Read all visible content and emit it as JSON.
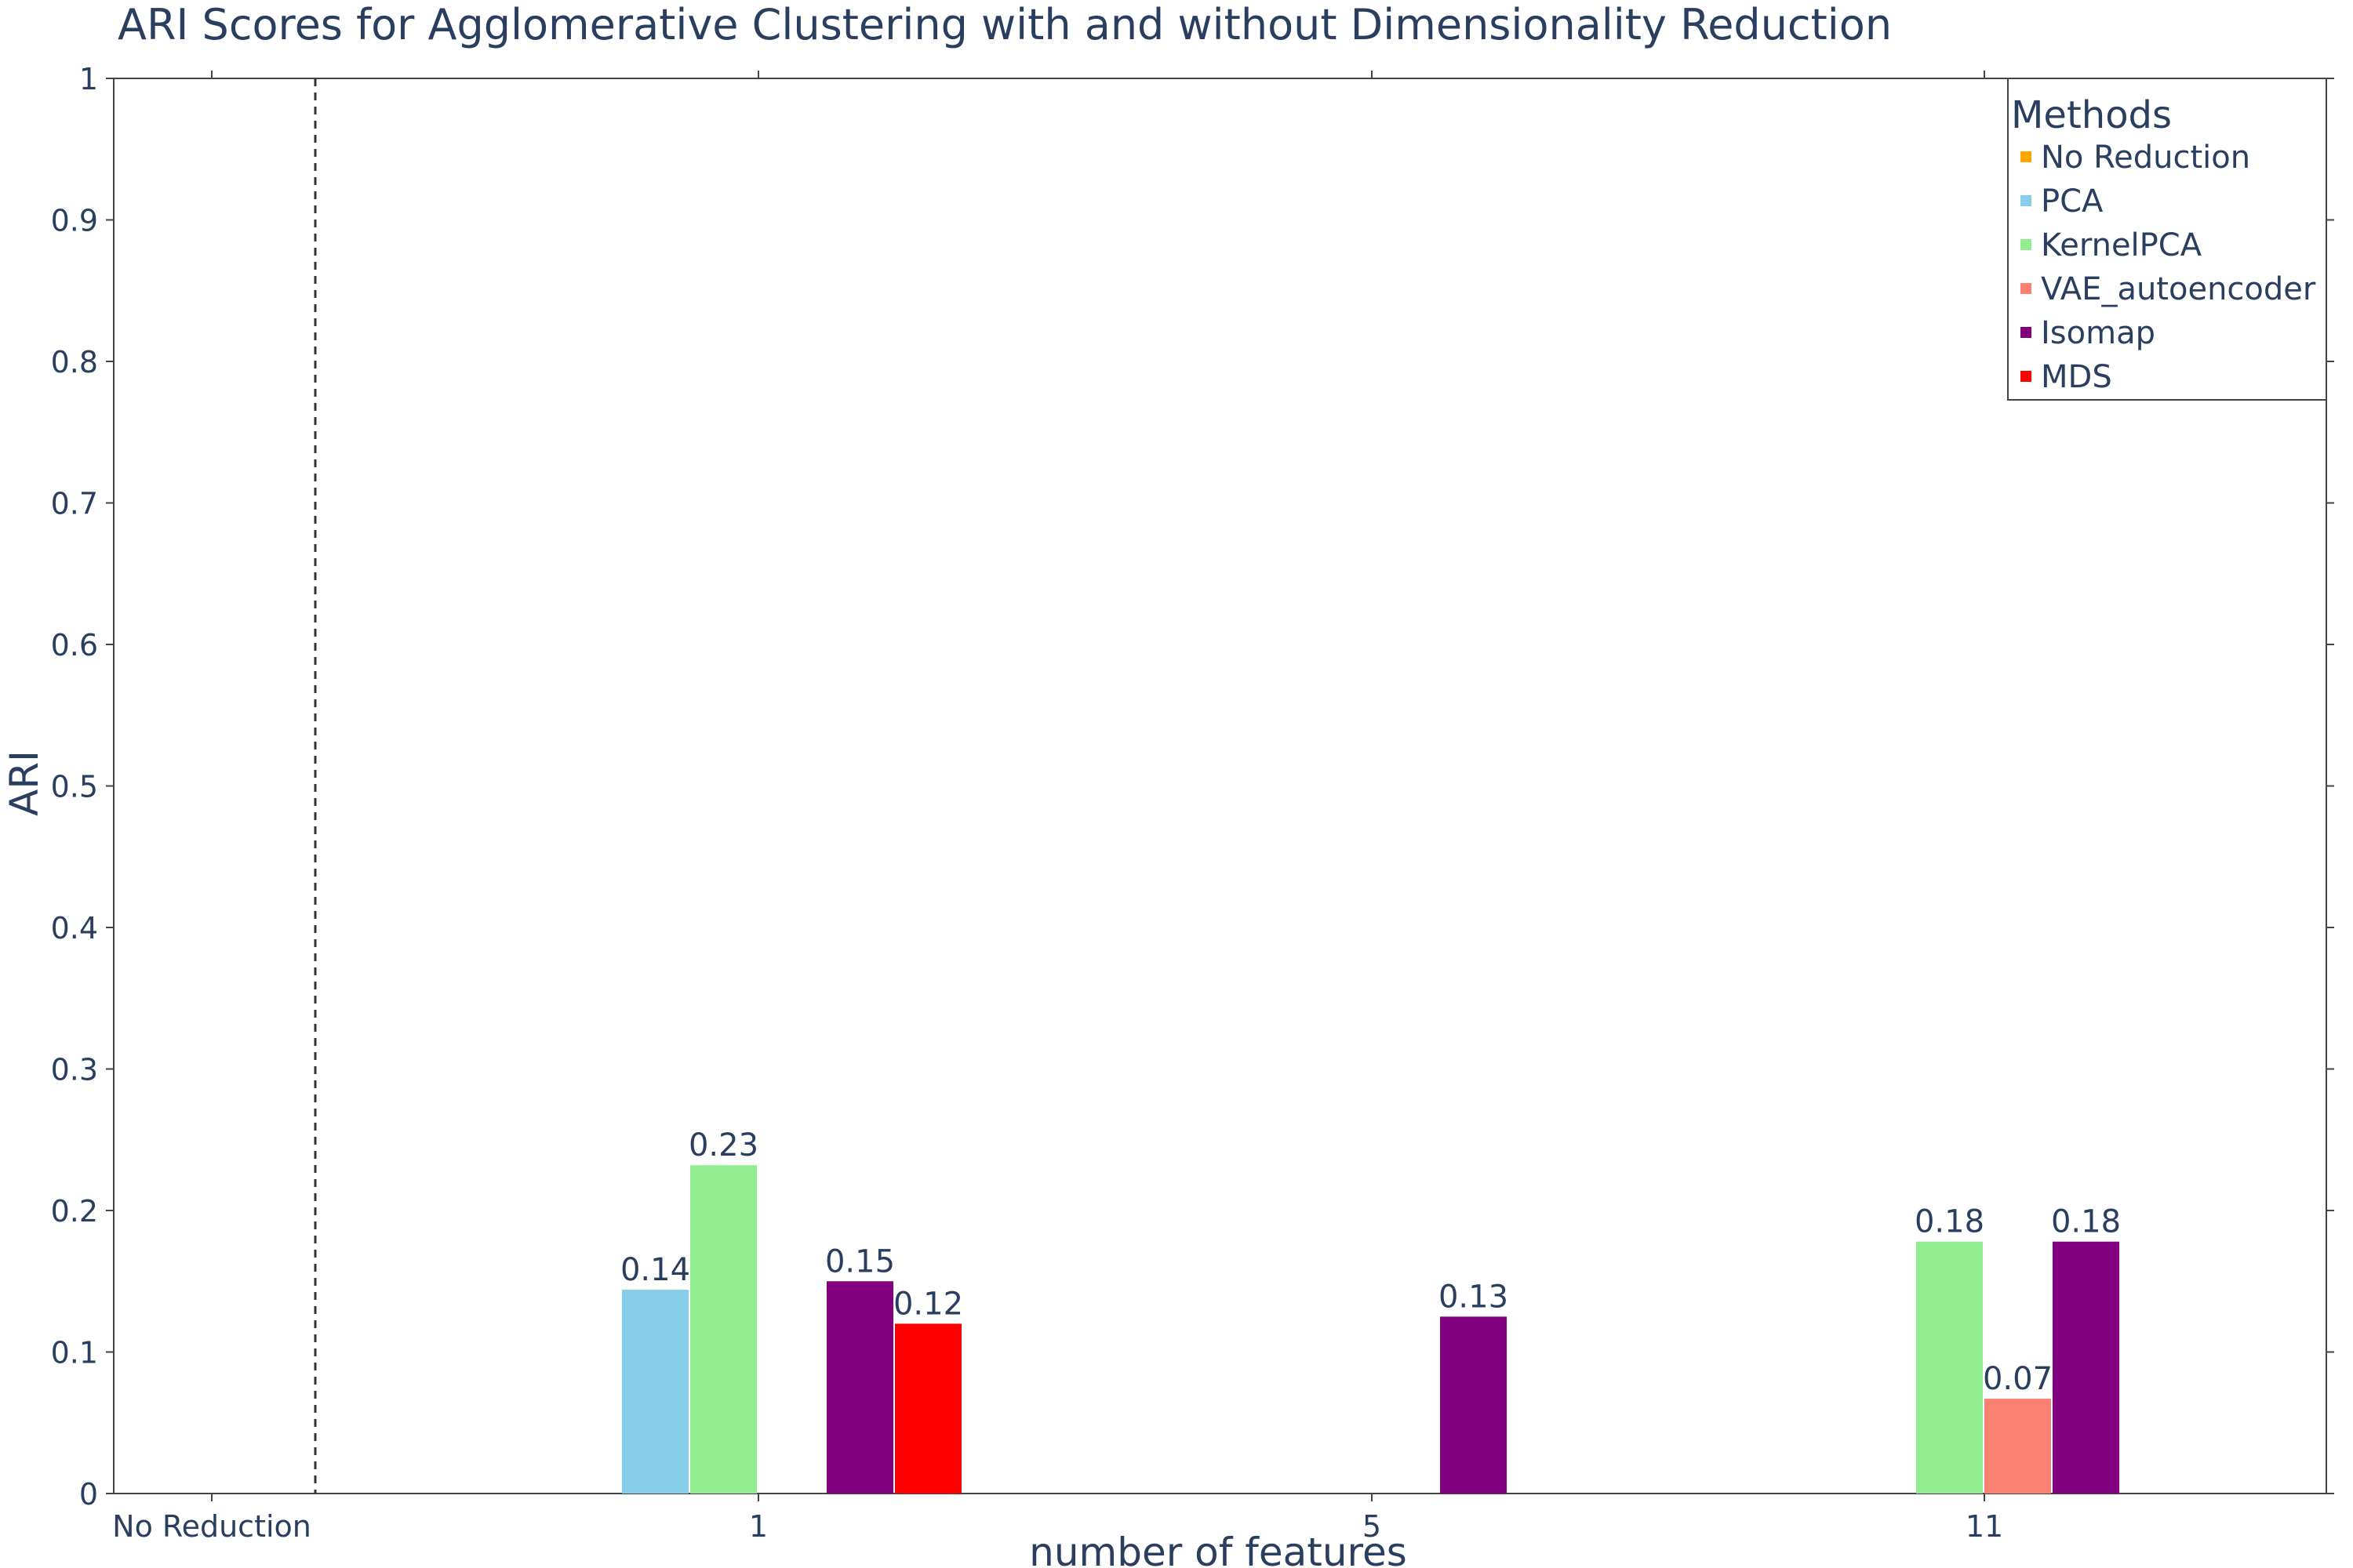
{
  "chart_data": {
    "type": "bar",
    "title": "ARI Scores for Agglomerative Clustering with and without Dimensionality Reduction",
    "xlabel": "number of features",
    "ylabel": "ARI",
    "ylim": [
      0,
      1
    ],
    "yticks": [
      "0",
      "0.1",
      "0.2",
      "0.3",
      "0.4",
      "0.5",
      "0.6",
      "0.7",
      "0.8",
      "0.9",
      "1"
    ],
    "categories": [
      "No Reduction",
      "1",
      "5",
      "11"
    ],
    "legend": {
      "title": "Methods",
      "position": "top-right"
    },
    "grid": false,
    "series": [
      {
        "name": "No Reduction",
        "color": "#FFA500",
        "values": [
          null,
          null,
          null,
          null
        ]
      },
      {
        "name": "PCA",
        "color": "#87CEEB",
        "values": [
          null,
          0.144,
          null,
          null
        ],
        "labels": [
          null,
          "0.14",
          null,
          null
        ]
      },
      {
        "name": "KernelPCA",
        "color": "#90EE90",
        "values": [
          null,
          0.232,
          null,
          0.178
        ],
        "labels": [
          null,
          "0.23",
          null,
          "0.18"
        ]
      },
      {
        "name": "VAE_autoencoder",
        "color": "#FA8072",
        "values": [
          null,
          null,
          null,
          0.067
        ],
        "labels": [
          null,
          null,
          null,
          "0.07"
        ]
      },
      {
        "name": "Isomap",
        "color": "#800080",
        "values": [
          null,
          0.15,
          0.125,
          0.178
        ],
        "labels": [
          null,
          "0.15",
          "0.13",
          "0.18"
        ]
      },
      {
        "name": "MDS",
        "color": "#FF0000",
        "values": [
          null,
          0.12,
          null,
          null
        ],
        "labels": [
          null,
          "0.12",
          null,
          null
        ]
      }
    ],
    "annotations": [
      {
        "type": "vertical-dashed-line",
        "after_category": "No Reduction"
      }
    ]
  }
}
